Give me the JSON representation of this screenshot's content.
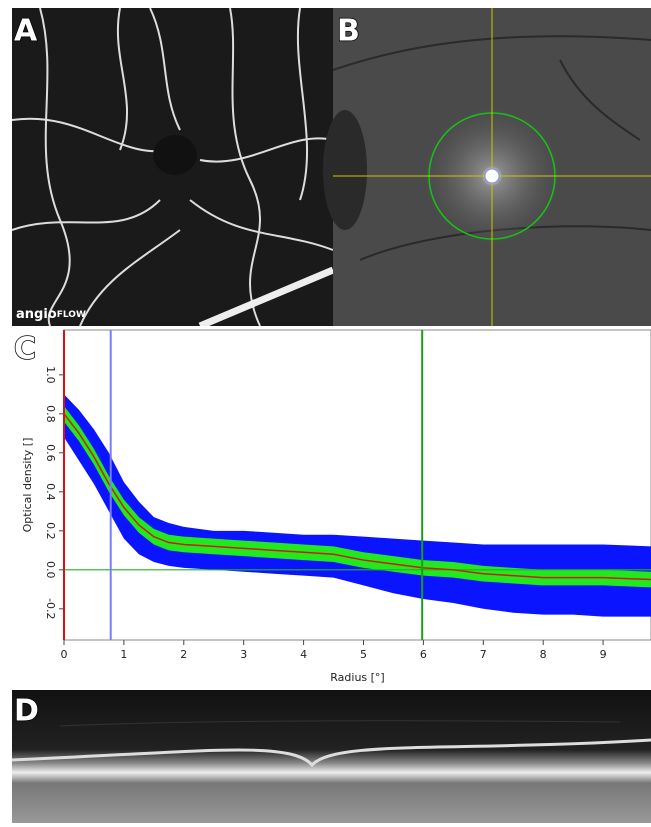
{
  "panels": [
    {
      "label": "A"
    },
    {
      "label": "B"
    },
    {
      "label": "C"
    },
    {
      "label": "D"
    }
  ],
  "logo": [
    "angio",
    "FLOW"
  ],
  "chart_data": {
    "type": "line",
    "x_label": "Radius [°]",
    "y_label": "Optical density []",
    "xlim": [
      0,
      9.8
    ],
    "ylim": [
      -0.36,
      1.23
    ],
    "xticks": [
      0,
      1,
      2,
      3,
      4,
      5,
      6,
      7,
      8,
      9
    ],
    "yticks": [
      -0.2,
      {
        "value": 0,
        "label": "0.0"
      },
      0.2,
      0.4,
      0.6,
      0.8,
      {
        "value": 1,
        "label": "1.0"
      }
    ],
    "x": [
      0,
      0.25,
      0.5,
      0.75,
      1,
      1.25,
      1.5,
      1.75,
      2,
      2.5,
      3,
      3.5,
      4,
      4.5,
      5,
      5.5,
      6,
      6.5,
      7,
      7.5,
      8,
      8.5,
      9,
      9.8
    ],
    "band_outer": {
      "color": "#0a14ff",
      "upper": [
        0.9,
        0.82,
        0.72,
        0.6,
        0.45,
        0.35,
        0.27,
        0.24,
        0.22,
        0.2,
        0.2,
        0.19,
        0.18,
        0.18,
        0.17,
        0.16,
        0.15,
        0.14,
        0.13,
        0.13,
        0.13,
        0.13,
        0.13,
        0.12
      ],
      "lower": [
        0.68,
        0.56,
        0.44,
        0.3,
        0.16,
        0.08,
        0.04,
        0.02,
        0.01,
        0,
        -0.01,
        -0.02,
        -0.03,
        -0.04,
        -0.08,
        -0.12,
        -0.15,
        -0.17,
        -0.2,
        -0.22,
        -0.23,
        -0.23,
        -0.24,
        -0.24
      ]
    },
    "band_inner": {
      "color": "#22e81e",
      "upper": [
        0.84,
        0.74,
        0.62,
        0.48,
        0.36,
        0.27,
        0.21,
        0.18,
        0.17,
        0.16,
        0.15,
        0.14,
        0.13,
        0.12,
        0.09,
        0.07,
        0.05,
        0.04,
        0.02,
        0.01,
        0,
        0,
        0,
        -0.01
      ],
      "lower": [
        0.76,
        0.66,
        0.54,
        0.4,
        0.28,
        0.19,
        0.13,
        0.1,
        0.09,
        0.08,
        0.07,
        0.06,
        0.05,
        0.04,
        0.01,
        -0.01,
        -0.03,
        -0.04,
        -0.06,
        -0.07,
        -0.08,
        -0.08,
        -0.08,
        -0.09
      ]
    },
    "mean": {
      "color": "#d01a1a",
      "values": [
        0.8,
        0.7,
        0.58,
        0.44,
        0.32,
        0.23,
        0.17,
        0.14,
        0.13,
        0.12,
        0.11,
        0.1,
        0.09,
        0.08,
        0.05,
        0.03,
        0.01,
        0,
        -0.02,
        -0.03,
        -0.04,
        -0.04,
        -0.04,
        -0.05
      ]
    },
    "vlines": [
      {
        "value": 0,
        "color": "#e01010"
      },
      {
        "value": 0.78,
        "color": "#7b7bff"
      },
      {
        "value": 5.98,
        "color": "#15a015"
      }
    ],
    "hlines": [
      {
        "value": 0,
        "color": "#22b022"
      }
    ]
  }
}
